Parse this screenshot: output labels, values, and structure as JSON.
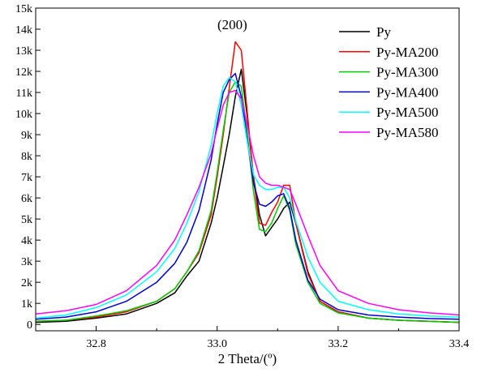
{
  "chart_data": {
    "type": "line",
    "title": "",
    "xlabel": "2 Theta/(º)",
    "ylabel": "",
    "xlim": [
      32.7,
      33.4
    ],
    "ylim": [
      -300,
      15000
    ],
    "xticks": [
      32.8,
      33.0,
      33.2,
      33.4
    ],
    "xtick_labels": [
      "32.8",
      "33.0",
      "33.2",
      "33.4"
    ],
    "yticks": [
      0,
      1000,
      2000,
      3000,
      4000,
      5000,
      6000,
      7000,
      8000,
      9000,
      10000,
      11000,
      12000,
      13000,
      14000,
      15000
    ],
    "ytick_labels": [
      "0",
      "1k",
      "2k",
      "3k",
      "4k",
      "5k",
      "6k",
      "7k",
      "8k",
      "9k",
      "10k",
      "11k",
      "12k",
      "13k",
      "14k",
      "15k"
    ],
    "annotation": "(200)",
    "annotation_at": [
      33.025,
      14000
    ],
    "legend_position": "top-right",
    "grid": false,
    "series": [
      {
        "name": "Py",
        "color": "#000000",
        "x": [
          32.7,
          32.75,
          32.8,
          32.85,
          32.9,
          32.93,
          32.95,
          32.97,
          32.99,
          33.0,
          33.01,
          33.02,
          33.03,
          33.04,
          33.05,
          33.06,
          33.07,
          33.08,
          33.09,
          33.1,
          33.11,
          33.12,
          33.13,
          33.15,
          33.17,
          33.2,
          33.25,
          33.3,
          33.35,
          33.4
        ],
        "y": [
          100,
          150,
          300,
          500,
          1000,
          1500,
          2300,
          3000,
          4800,
          6000,
          7500,
          9000,
          10800,
          12100,
          9800,
          7000,
          5200,
          4200,
          4600,
          5000,
          5500,
          5800,
          4800,
          2500,
          1100,
          600,
          300,
          200,
          150,
          100
        ]
      },
      {
        "name": "Py-MA200",
        "color": "#ff0000",
        "x": [
          32.7,
          32.75,
          32.8,
          32.85,
          32.9,
          32.93,
          32.95,
          32.97,
          32.99,
          33.0,
          33.01,
          33.02,
          33.03,
          33.04,
          33.05,
          33.06,
          33.07,
          33.08,
          33.09,
          33.1,
          33.11,
          33.12,
          33.13,
          33.15,
          33.17,
          33.2,
          33.25,
          33.3,
          33.35,
          33.4
        ],
        "y": [
          150,
          200,
          350,
          600,
          1100,
          1700,
          2500,
          3400,
          5200,
          7000,
          9000,
          11200,
          13400,
          13000,
          10000,
          6900,
          4800,
          4700,
          5300,
          5800,
          6600,
          6600,
          4800,
          2400,
          1100,
          600,
          300,
          200,
          150,
          100
        ]
      },
      {
        "name": "Py-MA300",
        "color": "#00cc00",
        "x": [
          32.7,
          32.75,
          32.8,
          32.85,
          32.9,
          32.93,
          32.95,
          32.97,
          32.99,
          33.0,
          33.01,
          33.02,
          33.03,
          33.04,
          33.05,
          33.06,
          33.07,
          33.08,
          33.09,
          33.1,
          33.11,
          33.12,
          33.13,
          33.15,
          33.17,
          33.2,
          33.25,
          33.3,
          33.35,
          33.4
        ],
        "y": [
          150,
          200,
          400,
          650,
          1100,
          1700,
          2500,
          3500,
          5400,
          7200,
          9200,
          11000,
          11500,
          11300,
          9000,
          6300,
          4500,
          4400,
          4800,
          5500,
          6100,
          5400,
          3800,
          2000,
          1000,
          550,
          300,
          200,
          150,
          100
        ]
      },
      {
        "name": "Py-MA400",
        "color": "#0000cc",
        "x": [
          32.7,
          32.75,
          32.8,
          32.85,
          32.9,
          32.93,
          32.95,
          32.97,
          32.99,
          33.0,
          33.01,
          33.02,
          33.03,
          33.04,
          33.05,
          33.06,
          33.07,
          33.08,
          33.09,
          33.1,
          33.11,
          33.12,
          33.13,
          33.15,
          33.17,
          33.2,
          33.25,
          33.3,
          33.35,
          33.4
        ],
        "y": [
          250,
          350,
          600,
          1100,
          2000,
          2900,
          3900,
          5400,
          7800,
          9500,
          11000,
          11600,
          11900,
          10800,
          8700,
          6700,
          5700,
          5600,
          5800,
          6100,
          6200,
          5500,
          4000,
          2100,
          1200,
          700,
          450,
          350,
          280,
          250
        ]
      },
      {
        "name": "Py-MA500",
        "color": "#00ffff",
        "x": [
          32.7,
          32.75,
          32.8,
          32.85,
          32.9,
          32.93,
          32.95,
          32.97,
          32.99,
          33.0,
          33.01,
          33.02,
          33.03,
          33.04,
          33.05,
          33.06,
          33.07,
          33.08,
          33.09,
          33.1,
          33.11,
          33.12,
          33.13,
          33.15,
          33.17,
          33.2,
          33.25,
          33.3,
          33.35,
          33.4
        ],
        "y": [
          300,
          450,
          800,
          1400,
          2500,
          3600,
          4800,
          6300,
          8500,
          10000,
          11300,
          11700,
          11500,
          10400,
          8600,
          7100,
          6600,
          6400,
          6400,
          6500,
          6500,
          6000,
          4900,
          3200,
          2000,
          1100,
          700,
          500,
          400,
          350
        ]
      },
      {
        "name": "Py-MA580",
        "color": "#ff00ff",
        "x": [
          32.7,
          32.75,
          32.8,
          32.85,
          32.9,
          32.93,
          32.95,
          32.97,
          32.99,
          33.0,
          33.01,
          33.02,
          33.03,
          33.04,
          33.05,
          33.06,
          33.07,
          33.08,
          33.09,
          33.1,
          33.11,
          33.12,
          33.13,
          33.15,
          33.17,
          33.2,
          33.25,
          33.3,
          33.35,
          33.4
        ],
        "y": [
          500,
          650,
          950,
          1600,
          2800,
          4000,
          5200,
          6500,
          8100,
          9300,
          10400,
          11000,
          11100,
          10700,
          9400,
          8000,
          7000,
          6700,
          6600,
          6600,
          6500,
          6400,
          5700,
          4200,
          2800,
          1600,
          1000,
          700,
          550,
          450
        ]
      }
    ]
  }
}
